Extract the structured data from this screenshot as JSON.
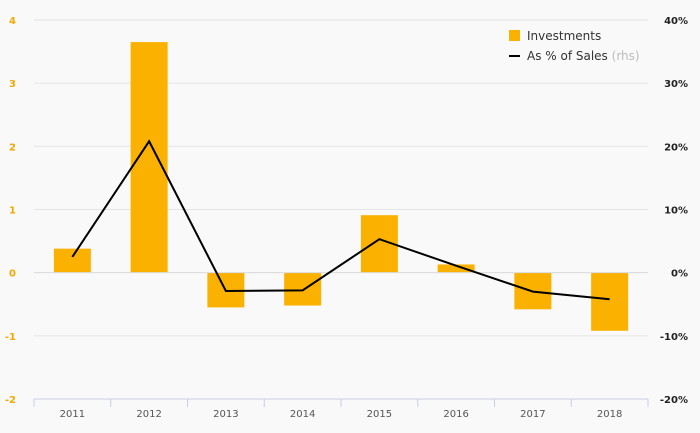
{
  "chart_data": {
    "type": "bar",
    "categories": [
      "2011",
      "2012",
      "2013",
      "2014",
      "2015",
      "2016",
      "2017",
      "2018"
    ],
    "series": [
      {
        "name": "Investments",
        "type": "bar",
        "axis": "left",
        "values": [
          0.38,
          3.65,
          -0.55,
          -0.52,
          0.91,
          0.13,
          -0.58,
          -0.92
        ]
      },
      {
        "name": "As % of Sales",
        "name_suffix": "(rhs)",
        "type": "line",
        "axis": "right",
        "values": [
          2.5,
          20.8,
          -2.9,
          -2.8,
          5.3,
          1.1,
          -3.0,
          -4.2
        ]
      }
    ],
    "y_left": {
      "min": -2,
      "max": 4,
      "ticks": [
        "-2",
        "-1",
        "0",
        "1",
        "2",
        "3",
        "4"
      ]
    },
    "y_right": {
      "min": -20,
      "max": 40,
      "ticks": [
        "-20%",
        "-10%",
        "0%",
        "10%",
        "20%",
        "30%",
        "40%"
      ]
    },
    "legend_position": "top-right",
    "grid": true,
    "colors": {
      "bar": "#fbb100",
      "line": "#000000",
      "grid": "#e4e4e4",
      "left_tick": "#f2a900"
    }
  }
}
